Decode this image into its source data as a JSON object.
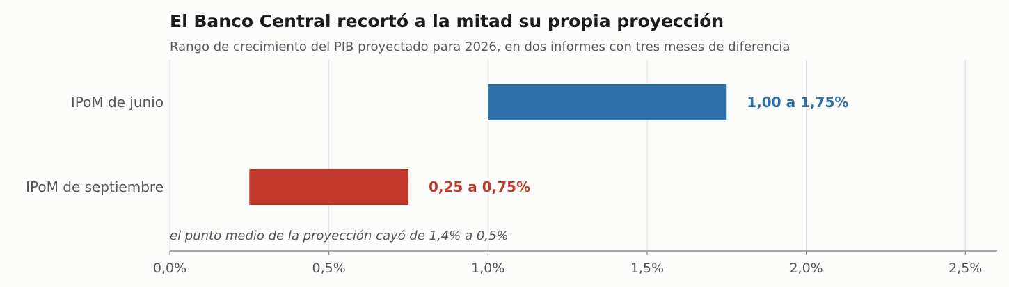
{
  "chart_data": {
    "type": "bar",
    "orientation": "horizontal",
    "title": "El Banco Central recortó a la mitad su propia proyección",
    "subtitle": "Rango de crecimiento del PIB proyectado para 2026, en dos informes con tres meses de diferencia",
    "categories": [
      "IPoM de junio",
      "IPoM de septiembre"
    ],
    "ranges": [
      {
        "category": "IPoM de junio",
        "start": 1.0,
        "end": 1.75,
        "label": "1,00 a 1,75%",
        "color": "#2e6fa7"
      },
      {
        "category": "IPoM de septiembre",
        "start": 0.25,
        "end": 0.75,
        "label": "0,25 a 0,75%",
        "color": "#c0392b"
      }
    ],
    "xlim": [
      0,
      2.6
    ],
    "xticks": [
      0,
      0.5,
      1.0,
      1.5,
      2.0,
      2.5
    ],
    "xtick_labels": [
      "0,0%",
      "0,5%",
      "1,0%",
      "1,5%",
      "2,0%",
      "2,5%"
    ],
    "grid": "vertical",
    "annotation": "el punto medio de la proyección cayó de 1,4% a 0,5%"
  }
}
